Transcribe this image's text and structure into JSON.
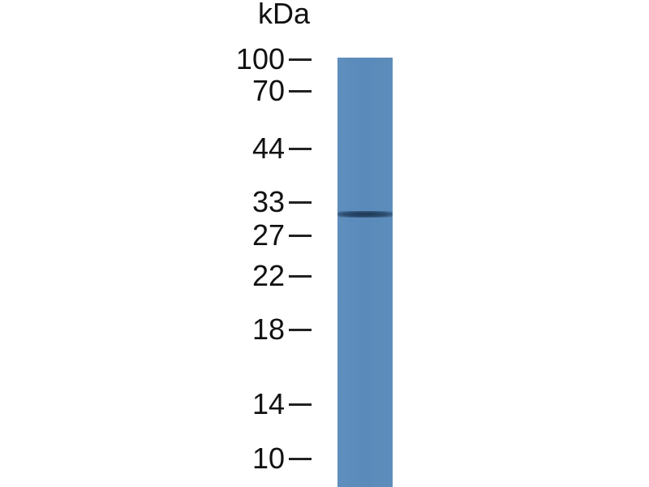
{
  "unit_label": "kDa",
  "markers": [
    {
      "label": "100",
      "kda": 100
    },
    {
      "label": "70",
      "kda": 70
    },
    {
      "label": "44",
      "kda": 44
    },
    {
      "label": "33",
      "kda": 33
    },
    {
      "label": "27",
      "kda": 27
    },
    {
      "label": "22",
      "kda": 22
    },
    {
      "label": "18",
      "kda": 18
    },
    {
      "label": "14",
      "kda": 14
    },
    {
      "label": "10",
      "kda": 10
    }
  ],
  "lane_color": "#5b8bba",
  "band": {
    "kda": 30,
    "color": "#1d3550"
  }
}
